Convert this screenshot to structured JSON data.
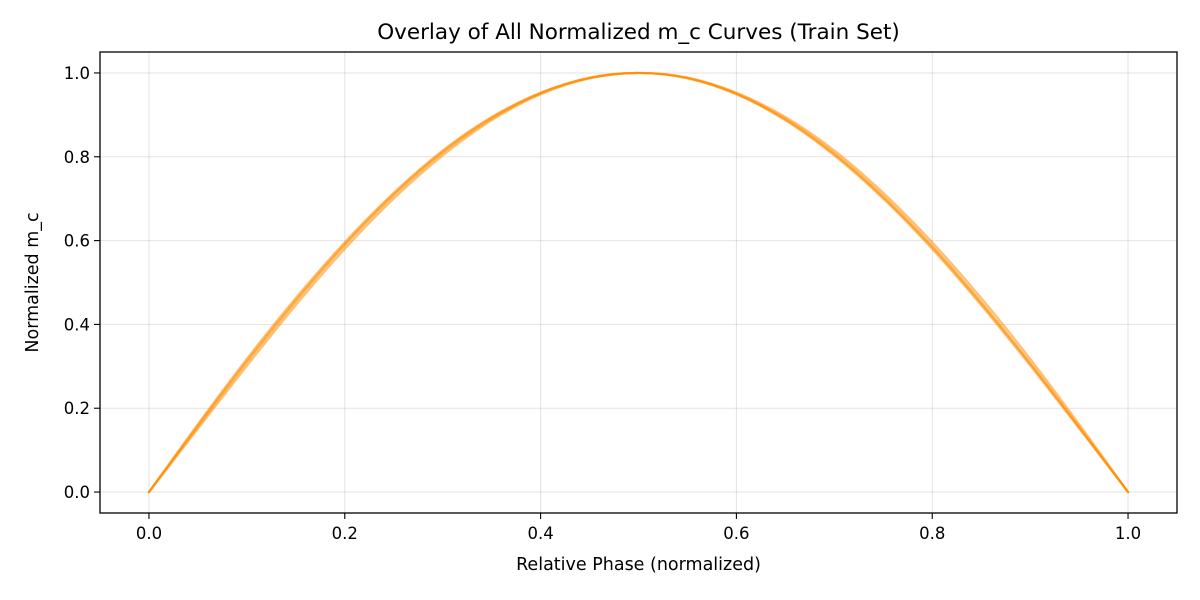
{
  "chart_data": {
    "type": "line",
    "title": "Overlay of All Normalized m_c Curves (Train Set)",
    "xlabel": "Relative Phase (normalized)",
    "ylabel": "Normalized m_c",
    "xlim": [
      -0.05,
      1.05
    ],
    "ylim": [
      -0.05,
      1.05
    ],
    "xticks": [
      0.0,
      0.2,
      0.4,
      0.6,
      0.8,
      1.0
    ],
    "yticks": [
      0.0,
      0.2,
      0.4,
      0.6,
      0.8,
      1.0
    ],
    "xtick_labels": [
      "0.0",
      "0.2",
      "0.4",
      "0.6",
      "0.8",
      "1.0"
    ],
    "ytick_labels": [
      "0.0",
      "0.2",
      "0.4",
      "0.6",
      "0.8",
      "1.0"
    ],
    "grid": true,
    "line_color": "#ff8c00",
    "series": [
      {
        "x": [
          0.0,
          0.05,
          0.1,
          0.15,
          0.2,
          0.25,
          0.3,
          0.35,
          0.4,
          0.45,
          0.5,
          0.55,
          0.6,
          0.65,
          0.7,
          0.75,
          0.8,
          0.85,
          0.9,
          0.95,
          1.0
        ],
        "values": [
          0.0,
          0.156,
          0.309,
          0.454,
          0.588,
          0.707,
          0.809,
          0.891,
          0.951,
          0.988,
          1.0,
          0.988,
          0.951,
          0.891,
          0.809,
          0.707,
          0.588,
          0.454,
          0.309,
          0.156,
          0.0
        ]
      },
      {
        "x": [
          0.0,
          0.05,
          0.1,
          0.15,
          0.2,
          0.25,
          0.3,
          0.35,
          0.4,
          0.45,
          0.5,
          0.55,
          0.6,
          0.65,
          0.7,
          0.75,
          0.8,
          0.85,
          0.9,
          0.95,
          1.0
        ],
        "values": [
          0.0,
          0.162,
          0.318,
          0.463,
          0.596,
          0.714,
          0.815,
          0.895,
          0.953,
          0.989,
          1.0,
          0.987,
          0.949,
          0.887,
          0.803,
          0.7,
          0.58,
          0.446,
          0.302,
          0.152,
          0.0
        ]
      },
      {
        "x": [
          0.0,
          0.05,
          0.1,
          0.15,
          0.2,
          0.25,
          0.3,
          0.35,
          0.4,
          0.45,
          0.5,
          0.55,
          0.6,
          0.65,
          0.7,
          0.75,
          0.8,
          0.85,
          0.9,
          0.95,
          1.0
        ],
        "values": [
          0.0,
          0.151,
          0.301,
          0.446,
          0.58,
          0.7,
          0.803,
          0.887,
          0.949,
          0.987,
          1.0,
          0.989,
          0.953,
          0.895,
          0.815,
          0.714,
          0.596,
          0.463,
          0.318,
          0.162,
          0.0
        ]
      },
      {
        "x": [
          0.0,
          0.05,
          0.1,
          0.15,
          0.2,
          0.25,
          0.3,
          0.35,
          0.4,
          0.45,
          0.5,
          0.55,
          0.6,
          0.65,
          0.7,
          0.75,
          0.8,
          0.85,
          0.9,
          0.95,
          1.0
        ],
        "values": [
          0.0,
          0.159,
          0.313,
          0.458,
          0.592,
          0.711,
          0.812,
          0.893,
          0.952,
          0.988,
          1.0,
          0.988,
          0.95,
          0.889,
          0.806,
          0.703,
          0.584,
          0.45,
          0.306,
          0.154,
          0.0
        ]
      }
    ]
  }
}
